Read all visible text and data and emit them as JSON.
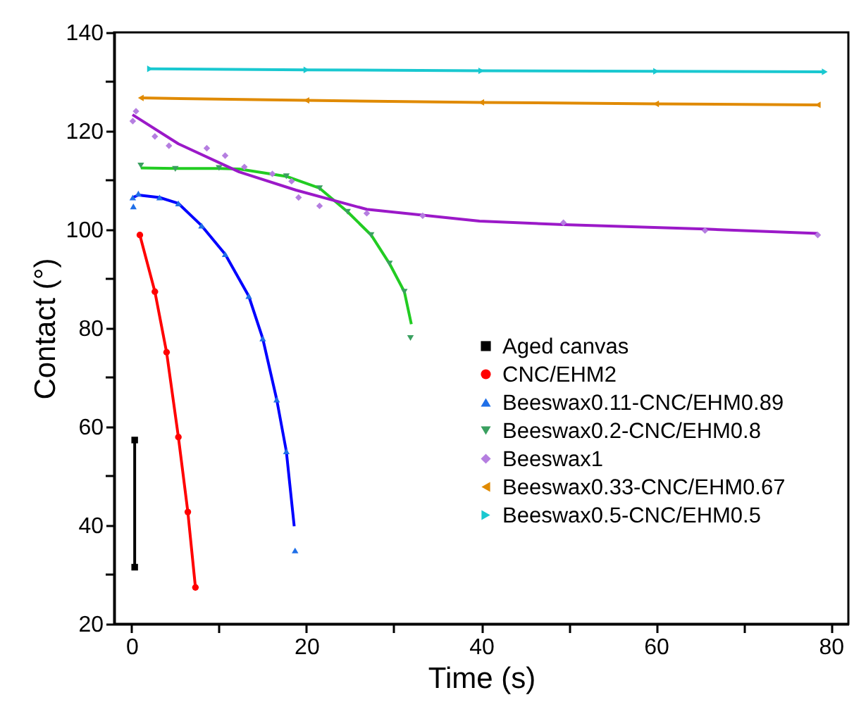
{
  "chart_data": {
    "type": "scatter",
    "xlabel": "Time (s)",
    "ylabel": "Contact (°)",
    "xlim": [
      -2,
      82
    ],
    "ylim": [
      20,
      140
    ],
    "xticks": [
      0,
      {
        "value": 10,
        "label": null
      },
      20,
      {
        "value": 30,
        "label": null
      },
      40,
      {
        "value": 50,
        "label": null
      },
      60,
      {
        "value": 70,
        "label": null
      },
      80
    ],
    "yticks": [
      20,
      {
        "value": 30,
        "label": null
      },
      40,
      {
        "value": 50,
        "label": null
      },
      60,
      {
        "value": 70,
        "label": null
      },
      80,
      {
        "value": 90,
        "label": null
      },
      100,
      {
        "value": 110,
        "label": null
      },
      120,
      {
        "value": 130,
        "label": null
      },
      140
    ],
    "grid": false,
    "legend": "bottom right",
    "series": [
      {
        "name": "Aged canvas",
        "type": "line",
        "marker": "square",
        "color": "#000000",
        "x": [
          0.35,
          0.35
        ],
        "values": [
          57.3,
          31.5
        ]
      },
      {
        "name": "CNC/EHM2",
        "type": "line",
        "marker": "circle",
        "color": "#ff0000",
        "x": [
          0.94,
          2.66,
          4.0,
          5.35,
          6.43,
          7.3
        ],
        "values": [
          98.9,
          87.4,
          75.1,
          57.9,
          42.7,
          27.4
        ]
      },
      {
        "name": "Beeswax0.11-CNC/EHM0.89",
        "type": "scatter",
        "marker": "triangle-up",
        "color": "#1f6fe8",
        "x": [
          0.13,
          0.2,
          0.77,
          3.2,
          5.35,
          8.0,
          10.7,
          13.4,
          15.0,
          16.6,
          17.7,
          18.7
        ],
        "values": [
          106.5,
          104.7,
          107.3,
          106.5,
          105.3,
          100.8,
          95.0,
          86.5,
          77.9,
          65.5,
          55.0,
          34.9
        ]
      },
      {
        "name": "Beeswax0.2-CNC/EHM0.8",
        "type": "scatter",
        "marker": "triangle-down",
        "color": "#3aa060",
        "x": [
          1.05,
          5.0,
          10.0,
          17.7,
          21.5,
          24.7,
          27.4,
          29.5,
          31.2,
          31.9
        ],
        "values": [
          113,
          112.3,
          112.5,
          110.8,
          108.4,
          103.6,
          98.9,
          93.1,
          87.4,
          78
        ]
      },
      {
        "name": "Beeswax1",
        "type": "scatter",
        "marker": "diamond",
        "color": "#b57ee0",
        "x": [
          0.13,
          0.5,
          2.66,
          4.27,
          8.6,
          10.7,
          12.9,
          16.1,
          18.3,
          19.1,
          21.5,
          26.9,
          33.3,
          49.4,
          65.6,
          78.5
        ],
        "values": [
          122,
          124,
          118.9,
          117,
          116.5,
          115,
          112.7,
          111.3,
          109.8,
          106.5,
          104.8,
          103.3,
          102.8,
          101.4,
          99.8,
          98.9
        ]
      },
      {
        "name": "Beeswax0.33-CNC/EHM0.67",
        "type": "line",
        "marker": "triangle-left",
        "color": "#e08a00",
        "x": [
          1.05,
          20,
          40,
          60,
          78.5
        ],
        "values": [
          126.7,
          126.2,
          125.8,
          125.5,
          125.3
        ]
      },
      {
        "name": "Beeswax0.5-CNC/EHM0.5",
        "type": "line",
        "marker": "triangle-right",
        "color": "#19c8d0",
        "x": [
          2.1,
          20,
          40,
          60,
          79.3
        ],
        "values": [
          132.6,
          132.4,
          132.2,
          132.1,
          132.0
        ]
      },
      {
        "type": "line",
        "marker": "none",
        "color": "#0000ff",
        "x": [
          0.13,
          0.77,
          3.2,
          5.35,
          8.0,
          10.7,
          13.4,
          15.0,
          16.6,
          17.7,
          18.6
        ],
        "values": [
          106.5,
          107.0,
          106.5,
          105.3,
          100.8,
          95.0,
          86.5,
          77.9,
          65.5,
          55.0,
          39.8
        ]
      },
      {
        "type": "line",
        "marker": "none",
        "color": "#22cc22",
        "x": [
          1.05,
          5.0,
          10.0,
          12.3,
          17.7,
          21.5,
          24.7,
          27.4,
          29.5,
          31.2,
          32.0
        ],
        "values": [
          112.5,
          112.4,
          112.4,
          112.3,
          110.8,
          108.4,
          103.6,
          98.9,
          93.1,
          87.4,
          80.8
        ]
      },
      {
        "type": "line",
        "marker": "none",
        "color": "#9b19c8",
        "x": [
          0.1,
          5.35,
          12.3,
          18.8,
          26.9,
          39.8,
          49.4,
          65.6,
          78.5
        ],
        "values": [
          123.3,
          117.4,
          111.7,
          108,
          104.1,
          101.7,
          101.0,
          100.1,
          99.2
        ]
      }
    ]
  }
}
